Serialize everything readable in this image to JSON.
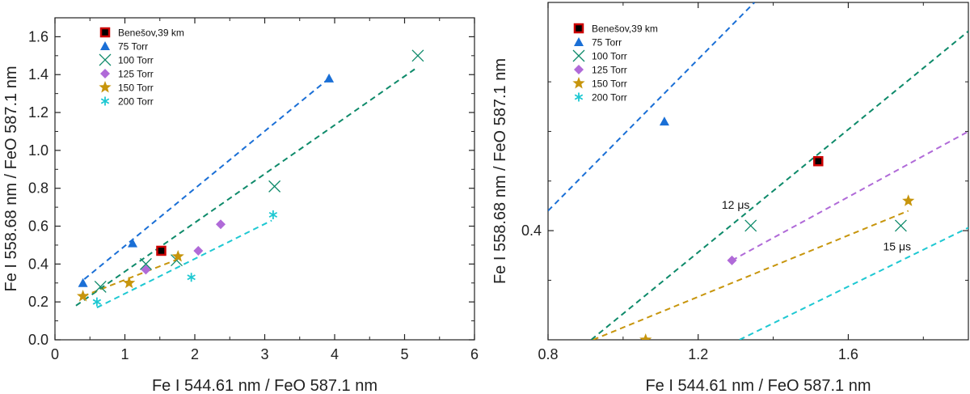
{
  "chart_data": [
    {
      "type": "scatter",
      "panel": "left",
      "xlabel": "Fe I 544.61 nm / FeO 587.1 nm",
      "ylabel": "Fe I 558.68 nm / FeO  587.1 nm",
      "xlim": [
        0,
        6
      ],
      "ylim": [
        0,
        1.7
      ],
      "xticks": [
        "0",
        "1",
        "2",
        "3",
        "4",
        "5",
        "6"
      ],
      "yticks": [
        "0.0",
        "0.2",
        "0.4",
        "0.6",
        "0.8",
        "1.0",
        "1.2",
        "1.4",
        "1.6"
      ],
      "legend_position": "top-left",
      "series": [
        {
          "name": "Benešov,39 km",
          "marker": "square",
          "color": "#cc0000",
          "fill": "#000000",
          "points": [
            [
              1.52,
              0.47
            ]
          ],
          "fit": null
        },
        {
          "name": "75 Torr",
          "marker": "triangle",
          "color": "#1a6fd6",
          "points": [
            [
              0.4,
              0.3
            ],
            [
              1.11,
              0.51
            ],
            [
              3.92,
              1.38
            ]
          ],
          "fit": [
            [
              0.42,
              0.32
            ],
            [
              3.92,
              1.38
            ]
          ]
        },
        {
          "name": "100 Torr",
          "marker": "x",
          "color": "#0e8a6a",
          "points": [
            [
              0.65,
              0.28
            ],
            [
              1.3,
              0.4
            ],
            [
              1.74,
              0.42
            ],
            [
              3.14,
              0.81
            ],
            [
              5.19,
              1.5
            ]
          ],
          "fit": [
            [
              0.3,
              0.18
            ],
            [
              5.15,
              1.43
            ]
          ]
        },
        {
          "name": "125 Torr",
          "marker": "diamond",
          "color": "#b06ad8",
          "points": [
            [
              1.3,
              0.37
            ],
            [
              2.05,
              0.47
            ],
            [
              2.37,
              0.61
            ]
          ],
          "fit": null
        },
        {
          "name": "150 Torr",
          "marker": "star",
          "color": "#c7950c",
          "points": [
            [
              0.4,
              0.23
            ],
            [
              1.06,
              0.3
            ],
            [
              1.76,
              0.44
            ]
          ],
          "fit": [
            [
              0.4,
              0.23
            ],
            [
              1.72,
              0.42
            ]
          ]
        },
        {
          "name": "200 Torr",
          "marker": "asterisk",
          "color": "#1ec8d2",
          "points": [
            [
              0.6,
              0.2
            ],
            [
              1.95,
              0.33
            ],
            [
              3.12,
              0.66
            ]
          ],
          "fit": [
            [
              0.6,
              0.17
            ],
            [
              3.1,
              0.63
            ]
          ]
        }
      ]
    },
    {
      "type": "scatter",
      "panel": "right",
      "xlabel": "Fe I 544.61 nm / FeO 587.1 nm",
      "ylabel": "Fe I 558.68 nm / FeO  587.1 nm",
      "xlim": [
        0.8,
        1.92
      ],
      "ylim": [
        0.29,
        0.63
      ],
      "xticks": [
        "0.8",
        "1.2",
        "1.6"
      ],
      "yticks": [
        "0.4"
      ],
      "legend_position": "top-left",
      "annotations": [
        {
          "text": "12 μs",
          "x": 1.3,
          "y": 0.422
        },
        {
          "text": "15 μs",
          "x": 1.73,
          "y": 0.38
        }
      ],
      "series": [
        {
          "name": "Benešov,39 km",
          "marker": "square",
          "color": "#cc0000",
          "fill": "#000000",
          "points": [
            [
              1.52,
              0.47
            ]
          ],
          "fit": null
        },
        {
          "name": "75 Torr",
          "marker": "triangle",
          "color": "#1a6fd6",
          "points": [
            [
              1.11,
              0.51
            ]
          ],
          "fit": [
            [
              0.8,
              0.42
            ],
            [
              1.35,
              0.63
            ]
          ]
        },
        {
          "name": "100 Torr",
          "marker": "x",
          "color": "#0e8a6a",
          "points": [
            [
              1.34,
              0.405
            ],
            [
              1.74,
              0.405
            ]
          ],
          "fit": [
            [
              0.915,
              0.29
            ],
            [
              1.92,
              0.601
            ]
          ]
        },
        {
          "name": "125 Torr",
          "marker": "diamond",
          "color": "#b06ad8",
          "points": [
            [
              1.29,
              0.37
            ]
          ],
          "fit": [
            [
              1.29,
              0.37
            ],
            [
              1.92,
              0.5
            ]
          ]
        },
        {
          "name": "150 Torr",
          "marker": "star",
          "color": "#c7950c",
          "points": [
            [
              1.06,
              0.29
            ],
            [
              1.76,
              0.43
            ]
          ],
          "fit": [
            [
              0.92,
              0.29
            ],
            [
              1.76,
              0.42
            ]
          ]
        },
        {
          "name": "200 Torr",
          "marker": "asterisk",
          "color": "#1ec8d2",
          "points": [],
          "fit": [
            [
              1.31,
              0.29
            ],
            [
              1.92,
              0.403
            ]
          ]
        }
      ]
    }
  ]
}
